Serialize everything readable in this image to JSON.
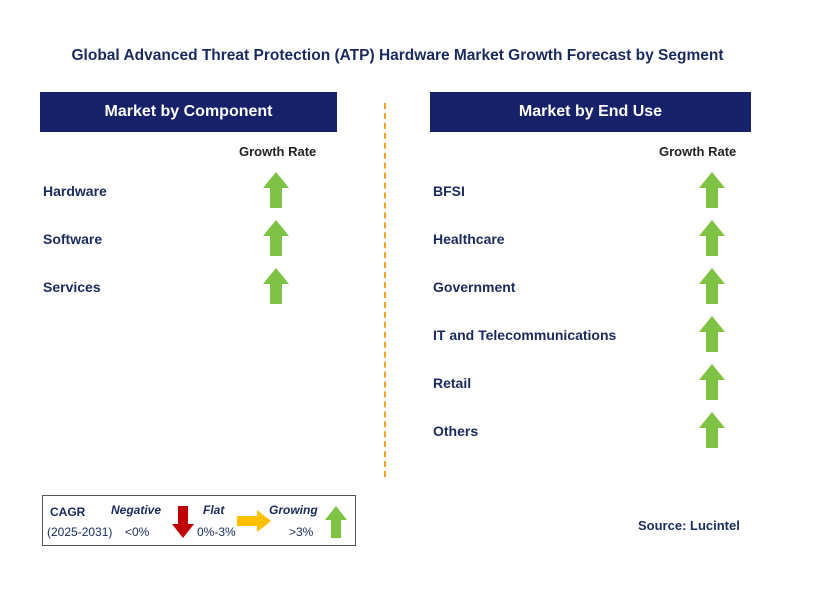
{
  "title": "Global Advanced Threat Protection (ATP) Hardware Market Growth Forecast by Segment",
  "left_panel": {
    "header": "Market by Component",
    "growth_rate_label": "Growth Rate",
    "items": [
      {
        "label": "Hardware",
        "trend": "growing"
      },
      {
        "label": "Software",
        "trend": "growing"
      },
      {
        "label": "Services",
        "trend": "growing"
      }
    ]
  },
  "right_panel": {
    "header": "Market by End Use",
    "growth_rate_label": "Growth Rate",
    "items": [
      {
        "label": "BFSI",
        "trend": "growing"
      },
      {
        "label": "Healthcare",
        "trend": "growing"
      },
      {
        "label": "Government",
        "trend": "growing"
      },
      {
        "label": "IT and Telecommunications",
        "trend": "growing"
      },
      {
        "label": "Retail",
        "trend": "growing"
      },
      {
        "label": "Others",
        "trend": "growing"
      }
    ]
  },
  "legend": {
    "cagr_label": "CAGR",
    "period": "(2025-2031)",
    "negative_label": "Negative",
    "negative_value": "<0%",
    "flat_label": "Flat",
    "flat_value": "0%-3%",
    "growing_label": "Growing",
    "growing_value": ">3%"
  },
  "source": "Source: Lucintel",
  "colors": {
    "header_bg": "#17216a",
    "growing_arrow": "#7dc242",
    "negative_arrow": "#c00000",
    "flat_arrow": "#ffc000",
    "divider": "#f4a321"
  }
}
